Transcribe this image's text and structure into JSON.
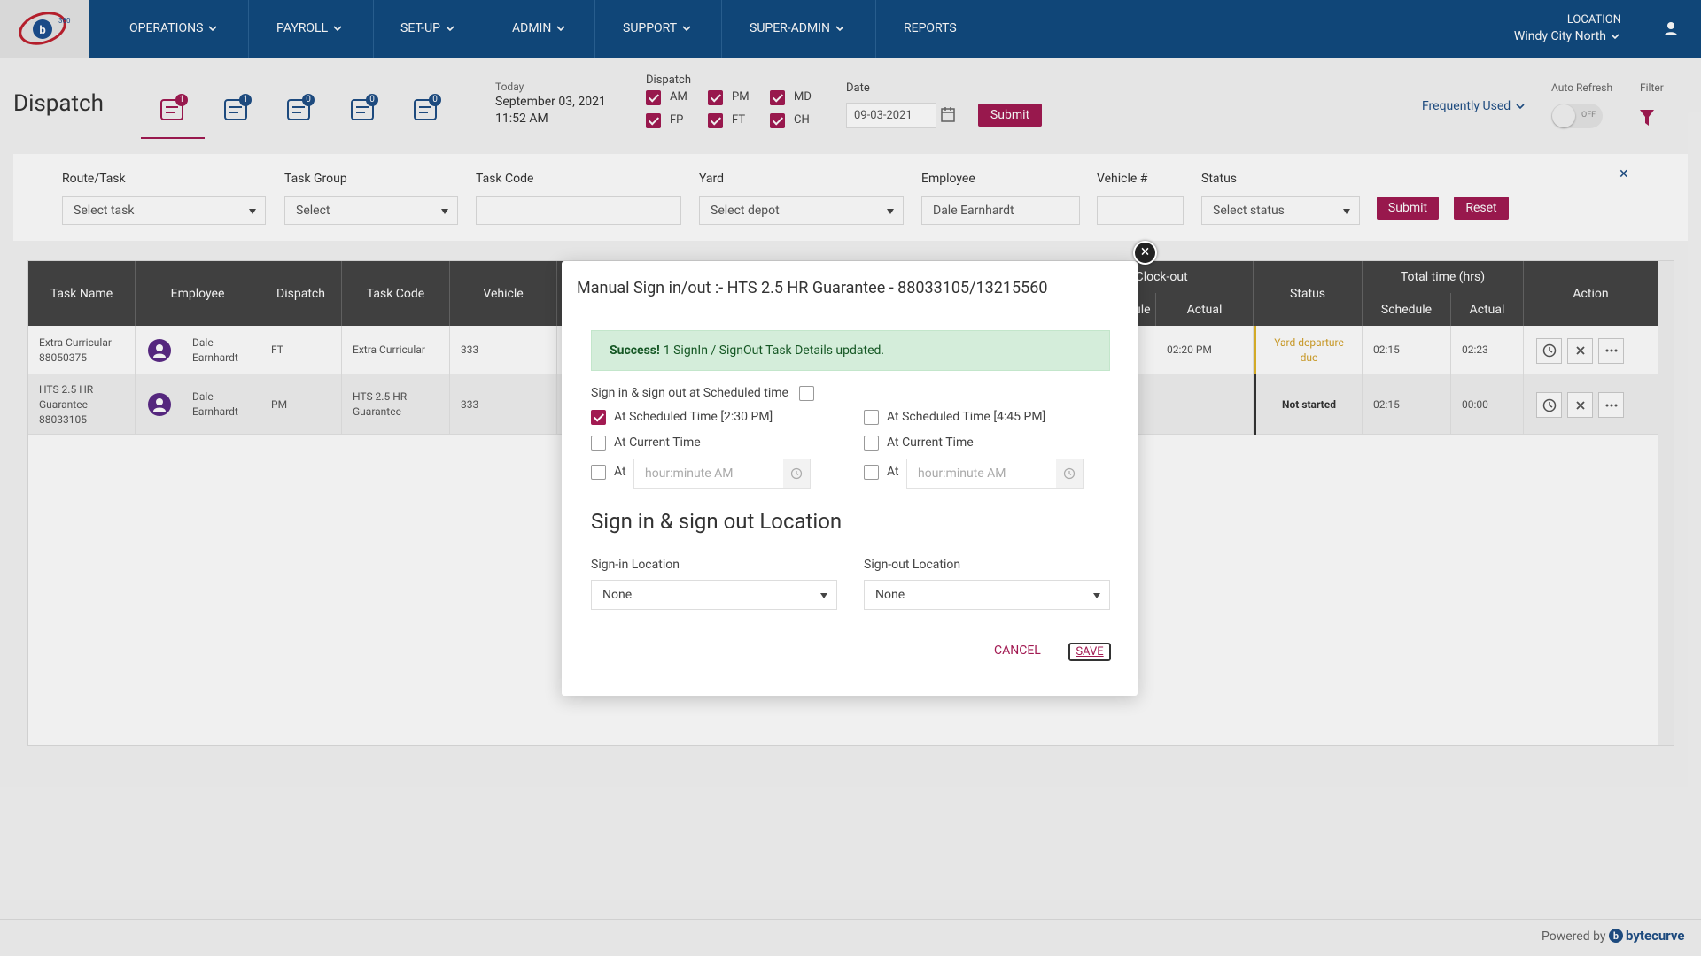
{
  "nav": {
    "items": [
      "OPERATIONS",
      "PAYROLL",
      "SET-UP",
      "ADMIN",
      "SUPPORT",
      "SUPER-ADMIN",
      "REPORTS"
    ],
    "location_label": "LOCATION",
    "location": "Windy City North"
  },
  "header": {
    "title": "Dispatch",
    "tab_badges": [
      "1",
      "1",
      "0",
      "0",
      "0"
    ],
    "today_label": "Today",
    "date": "September 03, 2021",
    "time": "11:52 AM",
    "dispatch_label": "Dispatch",
    "dispatch_options": [
      "AM",
      "PM",
      "MD",
      "FP",
      "FT",
      "CH"
    ],
    "date_label": "Date",
    "date_value": "09-03-2021",
    "submit": "Submit",
    "frequently_used": "Frequently Used",
    "auto_refresh_label": "Auto Refresh",
    "auto_refresh_state": "OFF",
    "filter_label": "Filter"
  },
  "filters": {
    "fields": [
      {
        "label": "Route/Task",
        "placeholder": "Select task"
      },
      {
        "label": "Task Group",
        "placeholder": "Select"
      },
      {
        "label": "Task Code"
      },
      {
        "label": "Yard",
        "placeholder": "Select depot"
      },
      {
        "label": "Employee",
        "value": "Dale Earnhardt"
      },
      {
        "label": "Vehicle #"
      },
      {
        "label": "Status",
        "placeholder": "Select status"
      }
    ],
    "submit": "Submit",
    "reset": "Reset"
  },
  "table": {
    "columns": [
      "Task Name",
      "Employee",
      "Dispatch",
      "Task Code",
      "Vehicle"
    ],
    "end_group": "End / Clock-out",
    "end_columns": [
      "Schedule",
      "Actual"
    ],
    "status_column": "Status",
    "total_group": "Total time (hrs)",
    "total_columns": [
      "Schedule",
      "Actual"
    ],
    "action_column": "Action",
    "rows": [
      {
        "task_name": "Extra Curricular - 88050375",
        "employee": "Dale Earnhardt",
        "dispatch": "FT",
        "task_code": "Extra Curricular",
        "vehicle": "333",
        "end_actual": "02:20 PM",
        "status": "Yard departure due",
        "total_schedule": "02:15",
        "total_actual": "02:23"
      },
      {
        "task_name": "HTS 2.5 HR Guarantee - 88033105",
        "employee": "Dale Earnhardt",
        "dispatch": "PM",
        "task_code": "HTS 2.5 HR Guarantee",
        "vehicle": "333",
        "end_actual": "-",
        "status": "Not started",
        "total_schedule": "02:15",
        "total_actual": "00:00"
      }
    ]
  },
  "modal": {
    "title": "Manual Sign in/out :- HTS 2.5 HR Guarantee - 88033105/13215560",
    "alert_strong": "Success!",
    "alert_text": "1 SignIn / SignOut Task Details updated.",
    "scheduled_toggle": "Sign in & sign out at Scheduled time",
    "sign_in_options": [
      "At Scheduled Time [2:30 PM]",
      "At Current Time",
      "At"
    ],
    "sign_out_options": [
      "At Scheduled Time [4:45 PM]",
      "At Current Time",
      "At"
    ],
    "time_placeholder": "hour:minute AM",
    "location_heading": "Sign in & sign out Location",
    "sign_in_location_label": "Sign-in Location",
    "sign_in_location": "None",
    "sign_out_location_label": "Sign-out Location",
    "sign_out_location": "None",
    "cancel": "CANCEL",
    "save": "SAVE"
  },
  "footer": {
    "powered_by": "Powered by",
    "brand": "bytecurve"
  }
}
